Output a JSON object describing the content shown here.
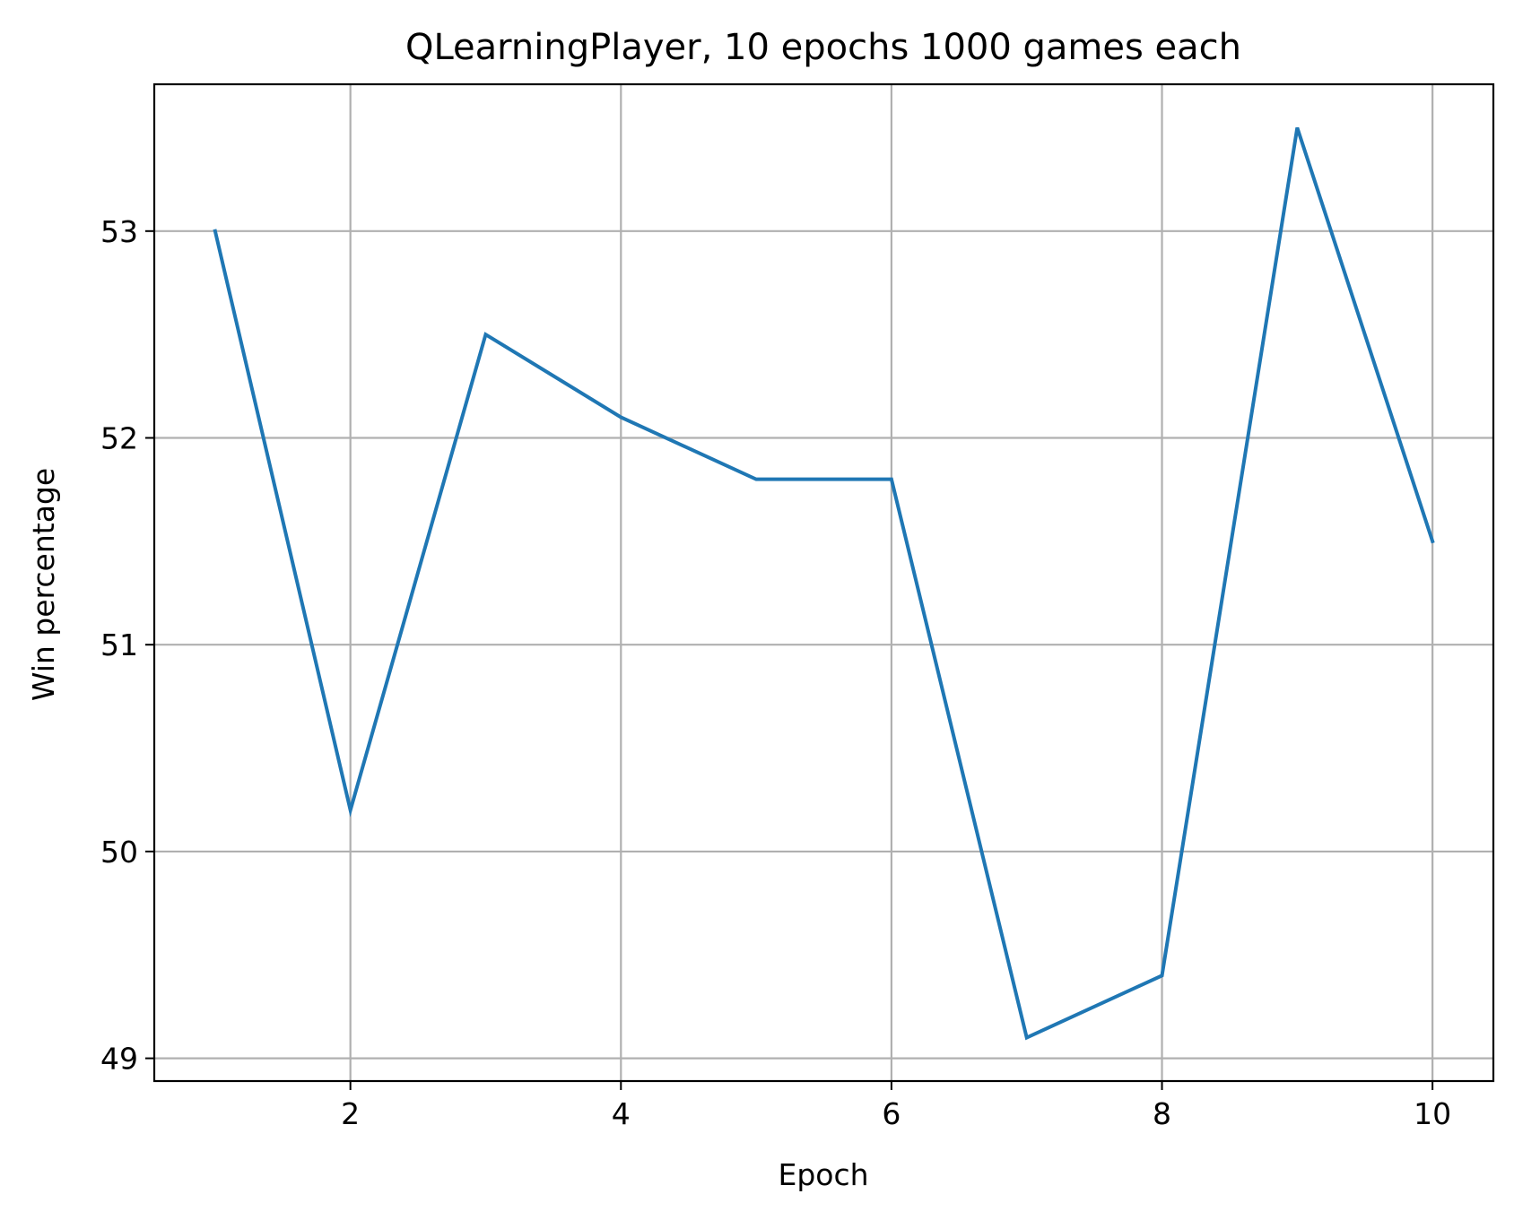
{
  "chart_data": {
    "type": "line",
    "title": "QLearningPlayer, 10 epochs 1000 games each",
    "xlabel": "Epoch",
    "ylabel": "Win percentage",
    "x": [
      1,
      2,
      3,
      4,
      5,
      6,
      7,
      8,
      9,
      10
    ],
    "series": [
      {
        "values": [
          53.0,
          50.2,
          52.5,
          52.1,
          51.8,
          51.8,
          49.1,
          49.4,
          53.5,
          51.5
        ],
        "color": "#1f77b4"
      }
    ],
    "xlim": [
      0.55,
      10.45
    ],
    "ylim": [
      48.89,
      53.71
    ],
    "xticks": [
      2,
      4,
      6,
      8,
      10
    ],
    "yticks": [
      49,
      50,
      51,
      52,
      53
    ],
    "grid": true,
    "legend": "none"
  }
}
